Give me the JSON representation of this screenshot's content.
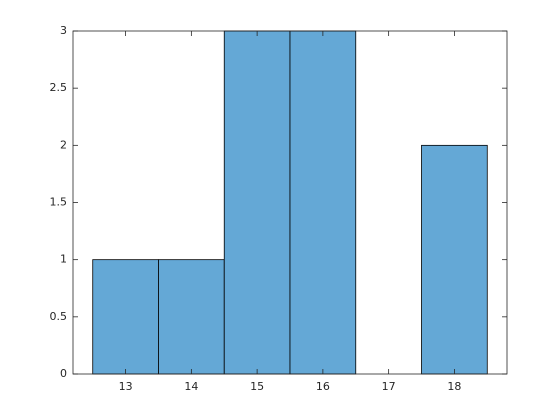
{
  "chart_data": {
    "type": "histogram",
    "bins": [
      12.5,
      13.5,
      14.5,
      15.5,
      16.5,
      17.5,
      18.5
    ],
    "values": [
      1,
      1,
      3,
      3,
      0,
      2
    ],
    "color": "#64a8d6",
    "xlim": [
      12.2,
      18.8
    ],
    "xticks": [
      13,
      14,
      15,
      16,
      17,
      18
    ],
    "ylim": [
      0,
      3
    ],
    "yticks": [
      0,
      0.5,
      1,
      1.5,
      2,
      2.5,
      3
    ]
  }
}
